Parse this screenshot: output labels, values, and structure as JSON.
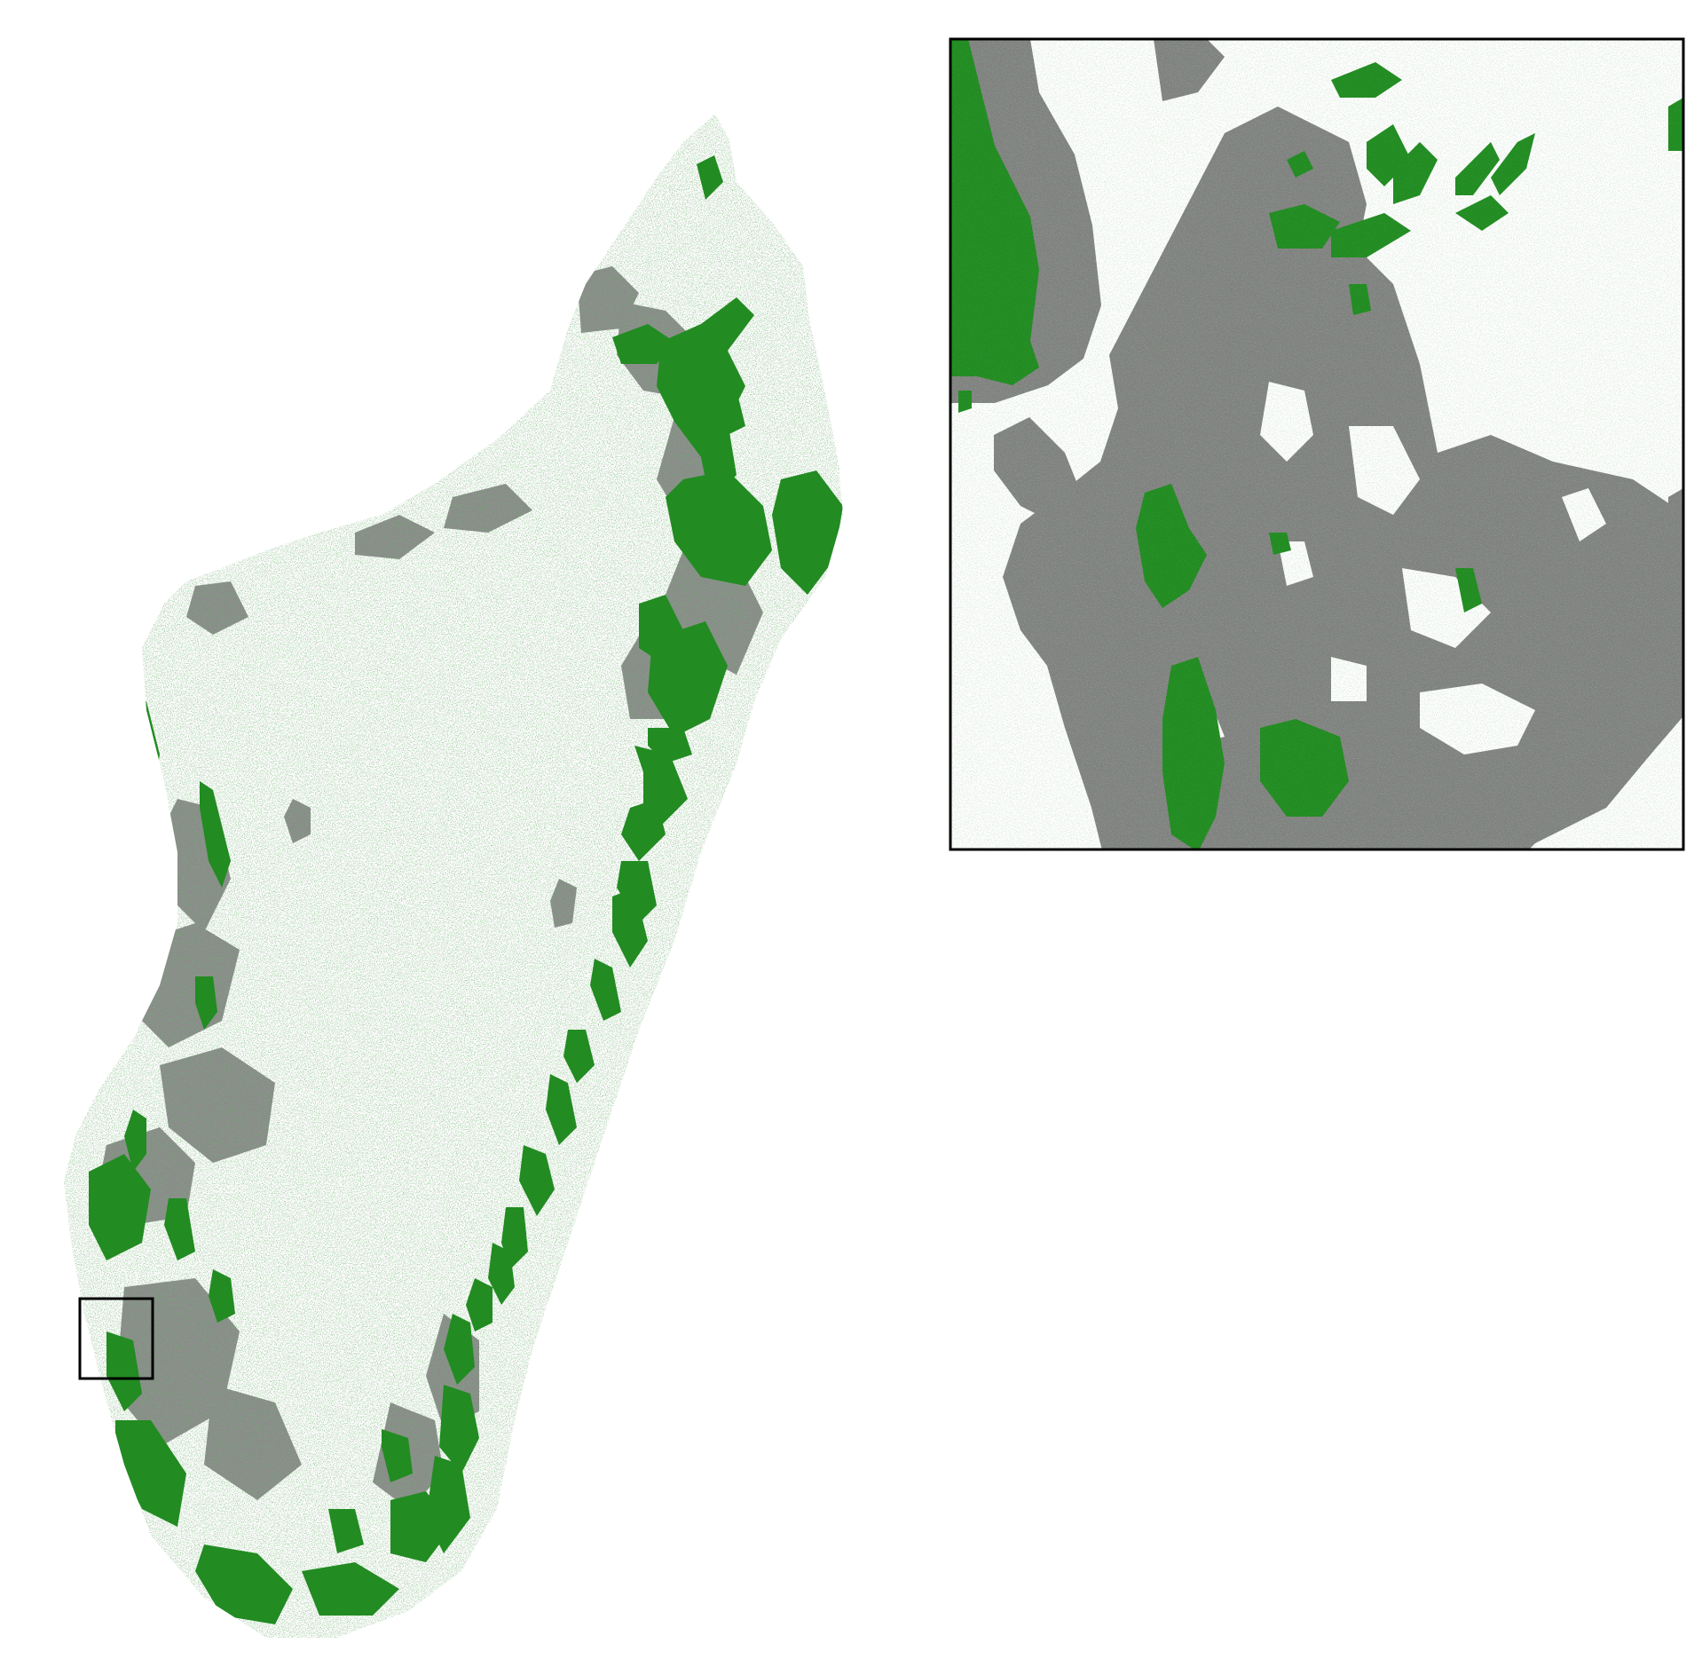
{
  "map": {
    "colors": {
      "forest": "#228b22",
      "deforested": "#808080",
      "background": "#ffffff",
      "frame": "#000000"
    },
    "main_panel": {
      "subject": "Madagascar",
      "layers": [
        "forest",
        "deforested"
      ]
    },
    "inset_panel": {
      "layers": [
        "forest",
        "deforested"
      ],
      "frame": true
    },
    "locator_box": {
      "frame": true
    }
  }
}
